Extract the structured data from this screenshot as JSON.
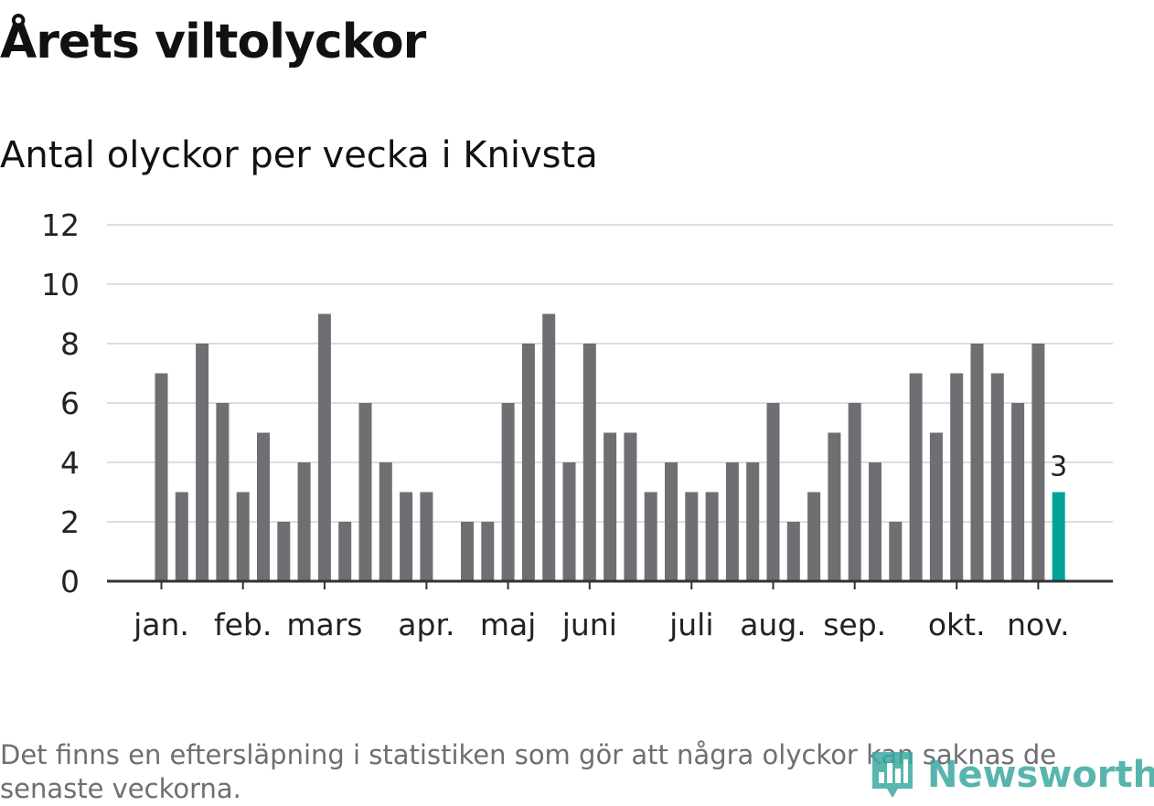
{
  "title": "Årets viltolyckor",
  "subtitle": "Antal olyckor per vecka i Knivsta",
  "footnote": "Det finns en eftersläpning i statistiken som gör att några olyckor kan saknas de senaste veckorna.",
  "brand": {
    "name": "Newsworthy",
    "icon": "newsworthy-logo-icon",
    "color": "#3aa9a0"
  },
  "colors": {
    "bar": "#6f6e73",
    "highlight": "#00a39a",
    "grid": "#dddddd",
    "axis": "#333333",
    "text": "#111111"
  },
  "chart_data": {
    "type": "bar",
    "title": "Årets viltolyckor",
    "subtitle": "Antal olyckor per vecka i Knivsta",
    "xlabel": "",
    "ylabel": "",
    "ylim": [
      0,
      12
    ],
    "yticks": [
      "0",
      "2",
      "4",
      "6",
      "8",
      "10",
      "12"
    ],
    "grid": true,
    "legend": "none",
    "x_tick_labels": [
      {
        "label": "jan.",
        "week": 1
      },
      {
        "label": "feb.",
        "week": 5
      },
      {
        "label": "mars",
        "week": 9
      },
      {
        "label": "apr.",
        "week": 14
      },
      {
        "label": "maj",
        "week": 18
      },
      {
        "label": "juni",
        "week": 22
      },
      {
        "label": "juli",
        "week": 27
      },
      {
        "label": "aug.",
        "week": 31
      },
      {
        "label": "sep.",
        "week": 35
      },
      {
        "label": "okt.",
        "week": 40
      },
      {
        "label": "nov.",
        "week": 44
      }
    ],
    "weeks": [
      1,
      2,
      3,
      4,
      5,
      6,
      7,
      8,
      9,
      10,
      11,
      12,
      13,
      14,
      15,
      16,
      17,
      18,
      19,
      20,
      21,
      22,
      23,
      24,
      25,
      26,
      27,
      28,
      29,
      30,
      31,
      32,
      33,
      34,
      35,
      36,
      37,
      38,
      39,
      40,
      41,
      42,
      43,
      44,
      45
    ],
    "values": [
      7,
      3,
      8,
      6,
      3,
      5,
      2,
      4,
      9,
      2,
      6,
      4,
      3,
      3,
      0,
      2,
      2,
      6,
      8,
      9,
      4,
      8,
      5,
      5,
      3,
      4,
      3,
      3,
      4,
      4,
      6,
      2,
      3,
      5,
      6,
      4,
      2,
      7,
      5,
      7,
      8,
      7,
      6,
      8,
      3
    ],
    "highlight_index": 44,
    "highlight_label": "3"
  }
}
